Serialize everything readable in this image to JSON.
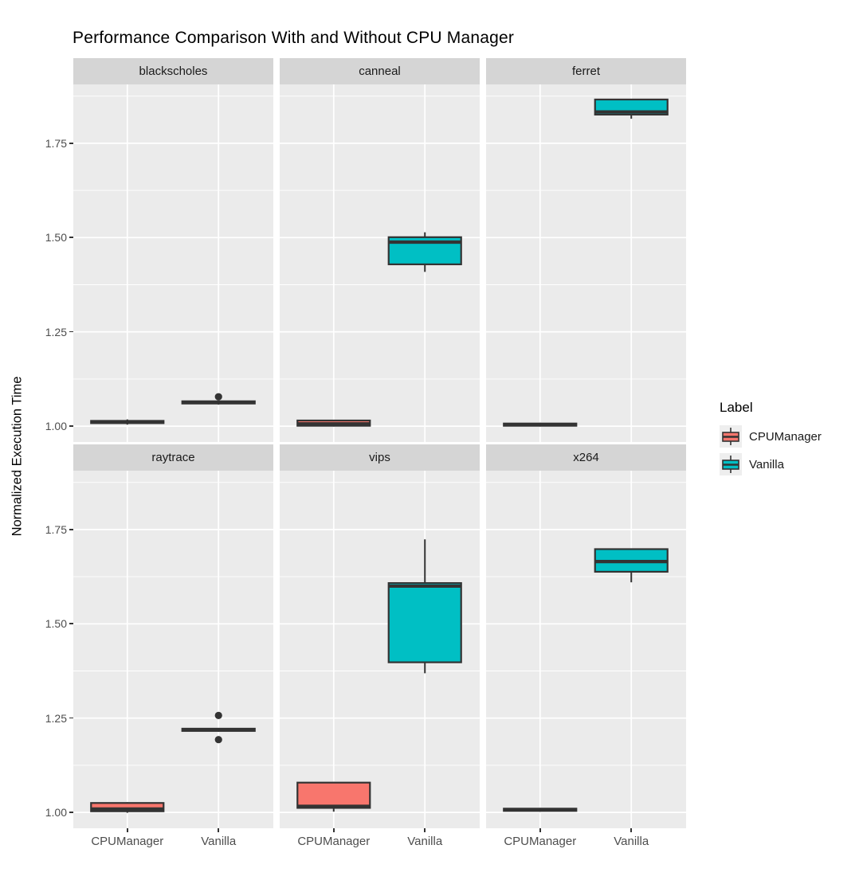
{
  "title": "Performance Comparison With and Without CPU Manager",
  "y_axis": {
    "title": "Normalized Execution Time",
    "tick_labels": [
      "1.00",
      "1.25",
      "1.50",
      "1.75"
    ],
    "tick_values": [
      1.0,
      1.25,
      1.5,
      1.75
    ],
    "minor_tick_values": [
      1.125,
      1.375,
      1.625,
      1.875
    ]
  },
  "x_axis": {
    "categories": [
      "CPUManager",
      "Vanilla"
    ]
  },
  "legend": {
    "title": "Label",
    "items": [
      {
        "label": "CPUManager",
        "color": "#F8766D"
      },
      {
        "label": "Vanilla",
        "color": "#00BFC4"
      }
    ]
  },
  "style_colors": {
    "panel_bg": "#EBEBEB",
    "strip_bg": "#D5D5D5",
    "gridline": "#FFFFFF",
    "box_stroke": "#333333",
    "tick_text": "#4D4D4D",
    "legend_key_bg": "#EEEEEE"
  },
  "chart_data": {
    "type": "boxplot",
    "title": "Performance Comparison With and Without CPU Manager",
    "ylabel": "Normalized Execution Time",
    "xlabel": "",
    "ylim": [
      0.958,
      1.906
    ],
    "grid": "on",
    "legend_position": "right",
    "categories": [
      "CPUManager",
      "Vanilla"
    ],
    "facet_layout": {
      "rows": 2,
      "cols": 3
    },
    "facets": [
      {
        "name": "blackscholes",
        "boxes": [
          {
            "group": "CPUManager",
            "low": 1.004,
            "q1": 1.008,
            "median": 1.011,
            "q3": 1.014,
            "high": 1.018,
            "outliers": []
          },
          {
            "group": "Vanilla",
            "low": 1.057,
            "q1": 1.06,
            "median": 1.063,
            "q3": 1.066,
            "high": 1.068,
            "outliers": [
              1.078
            ]
          }
        ]
      },
      {
        "name": "canneal",
        "boxes": [
          {
            "group": "CPUManager",
            "low": 0.999,
            "q1": 1.001,
            "median": 1.006,
            "q3": 1.015,
            "high": 1.017,
            "outliers": []
          },
          {
            "group": "Vanilla",
            "low": 1.409,
            "q1": 1.429,
            "median": 1.488,
            "q3": 1.501,
            "high": 1.514,
            "outliers": []
          }
        ]
      },
      {
        "name": "ferret",
        "boxes": [
          {
            "group": "CPUManager",
            "low": 0.999,
            "q1": 1.001,
            "median": 1.004,
            "q3": 1.007,
            "high": 1.009,
            "outliers": []
          },
          {
            "group": "Vanilla",
            "low": 1.815,
            "q1": 1.826,
            "median": 1.833,
            "q3": 1.866,
            "high": 1.868,
            "outliers": []
          }
        ]
      },
      {
        "name": "raytrace",
        "boxes": [
          {
            "group": "CPUManager",
            "low": 0.999,
            "q1": 1.003,
            "median": 1.009,
            "q3": 1.025,
            "high": 1.027,
            "outliers": []
          },
          {
            "group": "Vanilla",
            "low": 1.214,
            "q1": 1.216,
            "median": 1.219,
            "q3": 1.222,
            "high": 1.224,
            "outliers": [
              1.257,
              1.193
            ]
          }
        ]
      },
      {
        "name": "vips",
        "boxes": [
          {
            "group": "CPUManager",
            "low": 1.002,
            "q1": 1.012,
            "median": 1.016,
            "q3": 1.079,
            "high": 1.081,
            "outliers": []
          },
          {
            "group": "Vanilla",
            "low": 1.369,
            "q1": 1.398,
            "median": 1.6,
            "q3": 1.608,
            "high": 1.724,
            "outliers": []
          }
        ]
      },
      {
        "name": "x264",
        "boxes": [
          {
            "group": "CPUManager",
            "low": 1.002,
            "q1": 1.004,
            "median": 1.007,
            "q3": 1.01,
            "high": 1.012,
            "outliers": []
          },
          {
            "group": "Vanilla",
            "low": 1.61,
            "q1": 1.638,
            "median": 1.665,
            "q3": 1.698,
            "high": 1.7,
            "outliers": []
          }
        ]
      }
    ]
  }
}
